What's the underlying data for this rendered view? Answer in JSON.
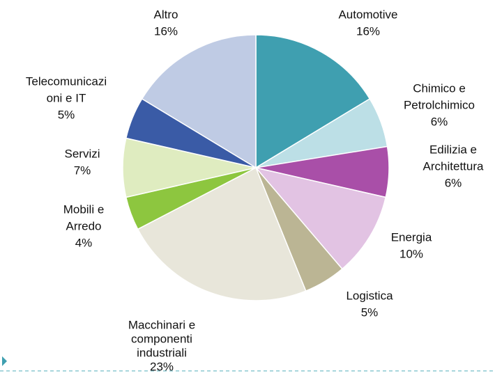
{
  "chart_data": {
    "type": "pie",
    "categories": [
      [
        "Automotive"
      ],
      [
        "Chimico e",
        "Petrolchimico"
      ],
      [
        "Edilizia e",
        "Architettura"
      ],
      [
        "Energia"
      ],
      [
        "Logistica"
      ],
      [
        "Macchinari e",
        "componenti",
        "industriali"
      ],
      [
        "Mobili e",
        "Arredo"
      ],
      [
        "Servizi"
      ],
      [
        "Telecomunicazi",
        "oni e IT"
      ],
      [
        "Altro"
      ]
    ],
    "values": [
      16,
      6,
      6,
      10,
      5,
      23,
      4,
      7,
      5,
      16
    ],
    "value_labels": [
      "16%",
      "6%",
      "6%",
      "10%",
      "5%",
      "23%",
      "4%",
      "7%",
      "5%",
      "16%"
    ],
    "colors": [
      "#3f9fb0",
      "#bcdfe6",
      "#a94fa8",
      "#e2c3e3",
      "#bbb594",
      "#e8e6da",
      "#8dc63f",
      "#dfecc0",
      "#3a5ba6",
      "#bfcbe4"
    ]
  }
}
